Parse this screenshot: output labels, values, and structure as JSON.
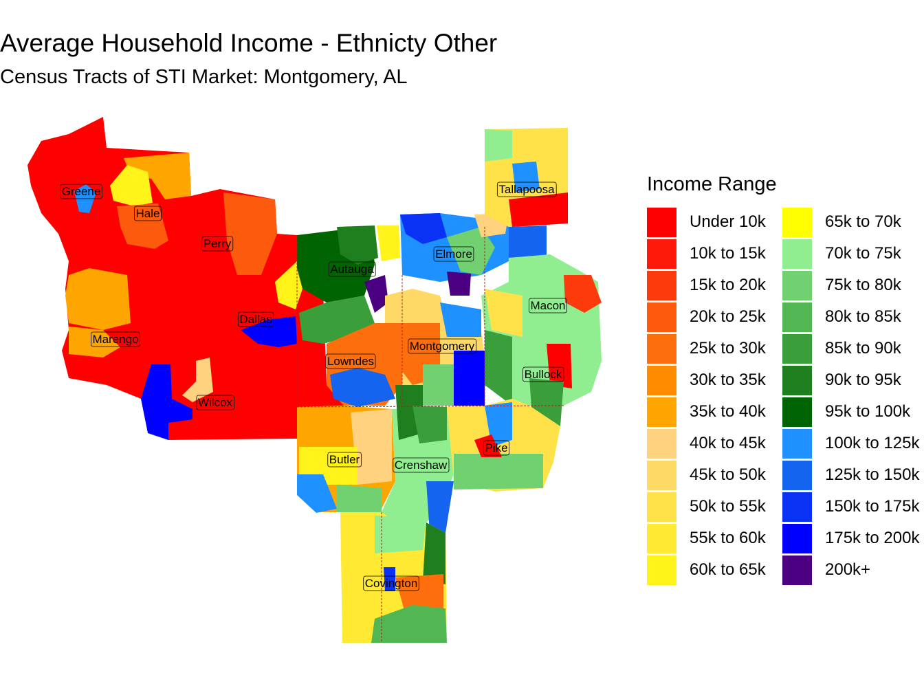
{
  "title": "Average Household Income - Ethnicty Other",
  "subtitle": "Census Tracts of STI Market: Montgomery, AL",
  "legend": {
    "title": "Income Range",
    "items": [
      {
        "label": "Under 10k",
        "color": "#ff0000"
      },
      {
        "label": "10k to 15k",
        "color": "#fe1a0a"
      },
      {
        "label": "15k to 20k",
        "color": "#fd3a0c"
      },
      {
        "label": "20k to 25k",
        "color": "#fc5a0d"
      },
      {
        "label": "25k to 30k",
        "color": "#fd6f0c"
      },
      {
        "label": "30k to 35k",
        "color": "#ff8c00"
      },
      {
        "label": "35k to 40k",
        "color": "#ffa500"
      },
      {
        "label": "40k to 45k",
        "color": "#ffd27f"
      },
      {
        "label": "45k to 50k",
        "color": "#ffd966"
      },
      {
        "label": "50k to 55k",
        "color": "#ffe24a"
      },
      {
        "label": "55k to 60k",
        "color": "#ffe933"
      },
      {
        "label": "60k to 65k",
        "color": "#fff31a"
      },
      {
        "label": "65k to 70k",
        "color": "#ffff00"
      },
      {
        "label": "70k to 75k",
        "color": "#90ee90"
      },
      {
        "label": "75k to 80k",
        "color": "#71d171"
      },
      {
        "label": "80k to 85k",
        "color": "#52b752"
      },
      {
        "label": "85k to 90k",
        "color": "#3a9e3a"
      },
      {
        "label": "90k to 95k",
        "color": "#1f7f1f"
      },
      {
        "label": "95k to 100k",
        "color": "#006400"
      },
      {
        "label": "100k to 125k",
        "color": "#1e90ff"
      },
      {
        "label": "125k to 150k",
        "color": "#1464f0"
      },
      {
        "label": "150k to 175k",
        "color": "#0a32f5"
      },
      {
        "label": "175k to 200k",
        "color": "#0000ff"
      },
      {
        "label": "200k+",
        "color": "#4b0082"
      }
    ]
  },
  "counties": [
    {
      "name": "Greene"
    },
    {
      "name": "Hale"
    },
    {
      "name": "Perry"
    },
    {
      "name": "Autauga"
    },
    {
      "name": "Elmore"
    },
    {
      "name": "Tallapoosa"
    },
    {
      "name": "Macon"
    },
    {
      "name": "Dallas"
    },
    {
      "name": "Marengo"
    },
    {
      "name": "Lowndes"
    },
    {
      "name": "Montgomery"
    },
    {
      "name": "Bullock"
    },
    {
      "name": "Wilcox"
    },
    {
      "name": "Butler"
    },
    {
      "name": "Crenshaw"
    },
    {
      "name": "Pike"
    },
    {
      "name": "Covington"
    }
  ]
}
